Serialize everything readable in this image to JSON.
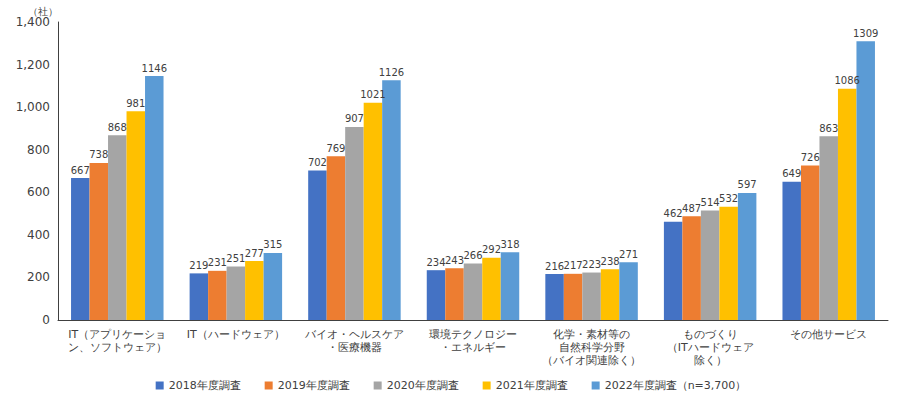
{
  "chart_data": {
    "type": "bar",
    "ylabel": "（社）",
    "categories": [
      "IT（アプリケーショ\nン、ソフトウェア）",
      "IT（ハードウェア）",
      "バイオ・ヘルスケア\n・医療機器",
      "環境テクノロジー\n・エネルギー",
      "化学・素材等の\n自然科学分野\n（バイオ関連除く）",
      "ものづくり\n（ITハードウェア\n除く）",
      "その他サービス"
    ],
    "series": [
      {
        "name": "2018年度調査",
        "color": "#4472c4",
        "values": [
          667,
          219,
          702,
          234,
          216,
          462,
          649
        ]
      },
      {
        "name": "2019年度調査",
        "color": "#ed7d31",
        "values": [
          738,
          231,
          769,
          243,
          217,
          487,
          726
        ]
      },
      {
        "name": "2020年度調査",
        "color": "#a5a5a5",
        "values": [
          868,
          251,
          907,
          266,
          223,
          514,
          863
        ]
      },
      {
        "name": "2021年度調査",
        "color": "#ffc000",
        "values": [
          981,
          277,
          1021,
          292,
          238,
          532,
          1086
        ]
      },
      {
        "name": "2022年度調査（n=3,700）",
        "color": "#5b9bd5",
        "values": [
          1146,
          315,
          1126,
          318,
          271,
          597,
          1309
        ]
      }
    ],
    "ylim": [
      0,
      1400
    ],
    "yticks": [
      0,
      200,
      400,
      600,
      800,
      {
        "value": 1000,
        "label": "1,000"
      },
      {
        "value": 1200,
        "label": "1,200"
      },
      {
        "value": 1400,
        "label": "1,400"
      }
    ],
    "grid": false,
    "legend": "bottom",
    "data_labels": true
  }
}
